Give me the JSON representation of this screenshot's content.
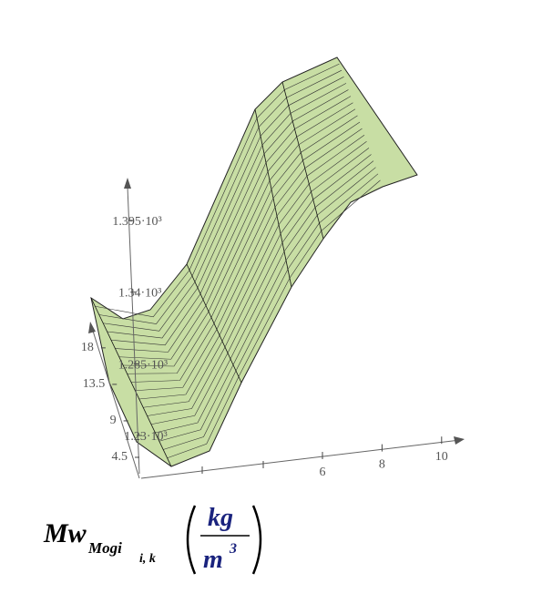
{
  "chart_data": {
    "type": "surface3d",
    "color": "#c8dea4",
    "xticks": [
      6,
      8,
      10
    ],
    "yticks": [
      4.5,
      9,
      13.5,
      18
    ],
    "zticks": [
      {
        "value": 1230,
        "label": "1.23·10³"
      },
      {
        "value": 1285,
        "label": "1.285·10³"
      },
      {
        "value": 1340,
        "label": "1.34·10³"
      },
      {
        "value": 1395,
        "label": "1.395·10³"
      }
    ],
    "zlabel": {
      "symbol": "Mw",
      "sub": "Mogi",
      "subsub": "i, k",
      "unit_num": "kg",
      "unit_den": "m",
      "unit_exp": "3"
    }
  }
}
